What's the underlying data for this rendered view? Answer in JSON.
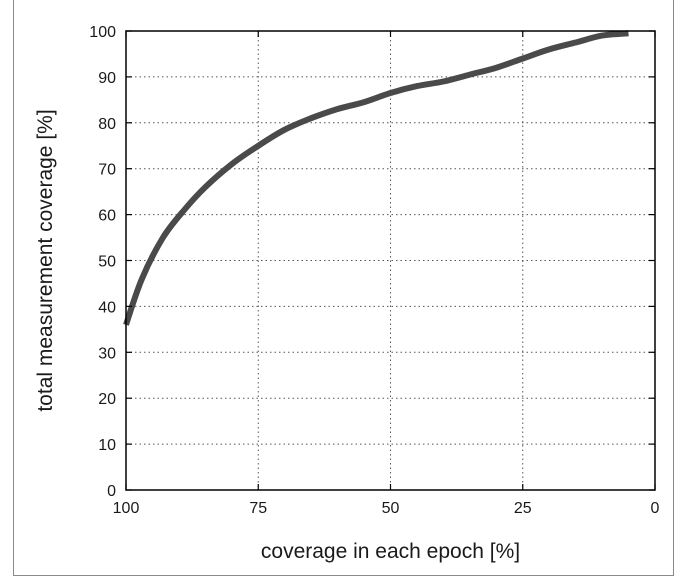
{
  "chart_data": {
    "type": "line",
    "xlabel": "coverage in each epoch [%]",
    "ylabel": "total measurement coverage [%]",
    "xlim": [
      100,
      0
    ],
    "ylim": [
      0,
      100
    ],
    "x_reversed": true,
    "x_ticks": [
      100,
      75,
      50,
      25,
      0
    ],
    "y_ticks": [
      0,
      10,
      20,
      30,
      40,
      50,
      60,
      70,
      80,
      90,
      100
    ],
    "grid": true,
    "line_color": "#4a4a4a",
    "series": [
      {
        "x": [
          100,
          97,
          93,
          89,
          85,
          80,
          75,
          70,
          65,
          60,
          55,
          50,
          45,
          40,
          35,
          30,
          25,
          20,
          15,
          10,
          5
        ],
        "y": [
          36,
          46,
          55,
          61,
          66,
          71,
          75,
          78.5,
          81,
          83,
          84.5,
          86.5,
          88,
          89,
          90.5,
          92,
          94,
          96,
          97.5,
          99,
          99.5
        ]
      }
    ]
  }
}
